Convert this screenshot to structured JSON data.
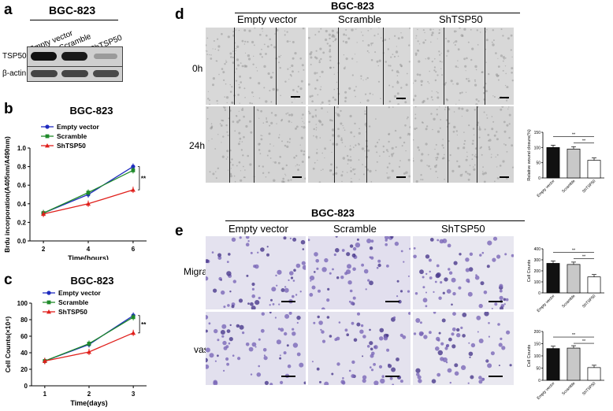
{
  "panel_a": {
    "label": "a",
    "title": "BGC-823",
    "lanes": [
      "Empty vector",
      "Scramble",
      "ShTSP50"
    ],
    "rows": [
      "TSP50",
      "β-actin"
    ]
  },
  "panel_b": {
    "label": "b"
  },
  "panel_c": {
    "label": "c"
  },
  "panel_d": {
    "label": "d",
    "title": "BGC-823",
    "columns": [
      "Empty vector",
      "Scramble",
      "ShTSP50"
    ],
    "rows": [
      "0h",
      "24h"
    ]
  },
  "panel_e": {
    "label": "e",
    "title": "BGC-823",
    "columns": [
      "Empty vector",
      "Scramble",
      "ShTSP50"
    ],
    "rows": [
      "Migration",
      "vasion"
    ]
  },
  "chart_data": [
    {
      "id": "b",
      "type": "line",
      "title": "BGC-823",
      "xlabel": "Time(hours)",
      "ylabel": "Brdu incorporation(A405nm/A490nm)",
      "x": [
        2,
        4,
        6
      ],
      "xlim": [
        1.4,
        6.6
      ],
      "ylim": [
        0.0,
        1.0
      ],
      "xticks": [
        "2",
        "4",
        "6"
      ],
      "yticks": [
        "0.0",
        "0.2",
        "0.4",
        "0.6",
        "0.8",
        "1.0"
      ],
      "series": [
        {
          "name": "Empty vector",
          "values": [
            0.3,
            0.5,
            0.8
          ],
          "color": "#1f2bbf"
        },
        {
          "name": "Scramble",
          "values": [
            0.3,
            0.52,
            0.76
          ],
          "color": "#1f8a2a"
        },
        {
          "name": "ShTSP50",
          "values": [
            0.29,
            0.4,
            0.55
          ],
          "color": "#e0201c"
        }
      ],
      "significance": "**",
      "legend": "top-left"
    },
    {
      "id": "c",
      "type": "line",
      "title": "BGC-823",
      "xlabel": "Time(days)",
      "ylabel": "Cell Counts(×10⁴)",
      "x": [
        1,
        2,
        3
      ],
      "xlim": [
        0.7,
        3.3
      ],
      "ylim": [
        0,
        100
      ],
      "xticks": [
        "1",
        "2",
        "3"
      ],
      "yticks": [
        "0",
        "20",
        "40",
        "60",
        "80",
        "100"
      ],
      "series": [
        {
          "name": "Empty vector",
          "values": [
            30,
            50,
            85
          ],
          "color": "#1f2bbf"
        },
        {
          "name": "Scramble",
          "values": [
            30,
            51,
            83
          ],
          "color": "#1f8a2a"
        },
        {
          "name": "ShTSP50",
          "values": [
            30,
            41,
            64
          ],
          "color": "#e0201c"
        }
      ],
      "significance": "**",
      "legend": "top-left"
    },
    {
      "id": "d-bar",
      "type": "bar",
      "ylabel": "Relative wound closure(%)",
      "categories": [
        "Empty vector",
        "Scramble",
        "ShTSP50"
      ],
      "values": [
        100,
        95,
        58
      ],
      "colors": [
        "#111111",
        "#c8c8c8",
        "#ffffff"
      ],
      "ylim": [
        0,
        150
      ],
      "yticks": [
        "0",
        "50",
        "100",
        "150"
      ],
      "significance": [
        "**",
        "**"
      ]
    },
    {
      "id": "e-bar-migration",
      "type": "bar",
      "ylabel": "Cell Counts",
      "categories": [
        "Empty vector",
        "Scramble",
        "ShTSP50"
      ],
      "values": [
        268,
        258,
        145
      ],
      "colors": [
        "#111111",
        "#c8c8c8",
        "#ffffff"
      ],
      "ylim": [
        0,
        400
      ],
      "yticks": [
        "0",
        "100",
        "200",
        "300",
        "400"
      ],
      "significance": [
        "**",
        "**"
      ]
    },
    {
      "id": "e-bar-invasion",
      "type": "bar",
      "ylabel": "Cell Counts",
      "categories": [
        "Empty vector",
        "Scramble",
        "ShTSP50"
      ],
      "values": [
        130,
        132,
        52
      ],
      "colors": [
        "#111111",
        "#c8c8c8",
        "#ffffff"
      ],
      "ylim": [
        0,
        200
      ],
      "yticks": [
        "0",
        "50",
        "100",
        "150",
        "200"
      ],
      "significance": [
        "**",
        "**"
      ]
    }
  ]
}
